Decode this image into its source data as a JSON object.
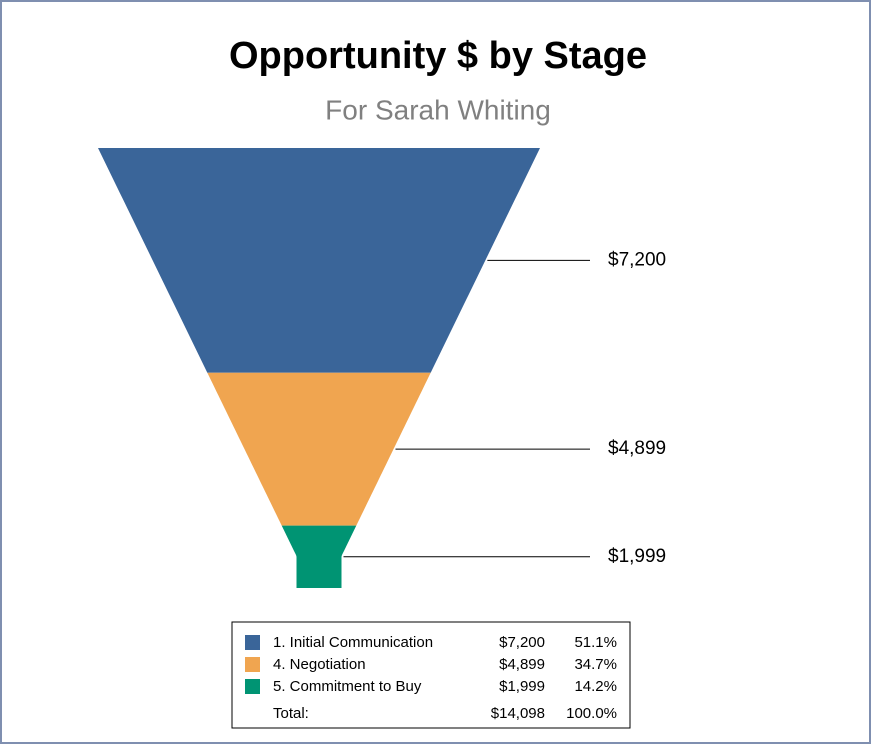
{
  "chart_data": {
    "type": "funnel",
    "title": "Opportunity $ by Stage",
    "subtitle": "For Sarah Whiting",
    "categories": [
      "1. Initial Communication",
      "4. Negotiation",
      "5. Commitment to Buy"
    ],
    "values": [
      7200,
      4899,
      1999
    ],
    "value_labels": [
      "$7,200",
      "$4,899",
      "$1,999"
    ],
    "colors": [
      "#3a6599",
      "#f0a550",
      "#009473"
    ],
    "shares": [
      {
        "value": 51.1,
        "label": "51.1%"
      },
      {
        "value": 34.7,
        "label": "34.7%"
      },
      {
        "value": 14.2,
        "label": "14.2%"
      }
    ],
    "total_label": "Total:",
    "total": {
      "value": 14098,
      "label": "$14,098"
    },
    "total_share": {
      "value": 100.0,
      "label": "100.0%"
    },
    "legend": "bottom"
  }
}
